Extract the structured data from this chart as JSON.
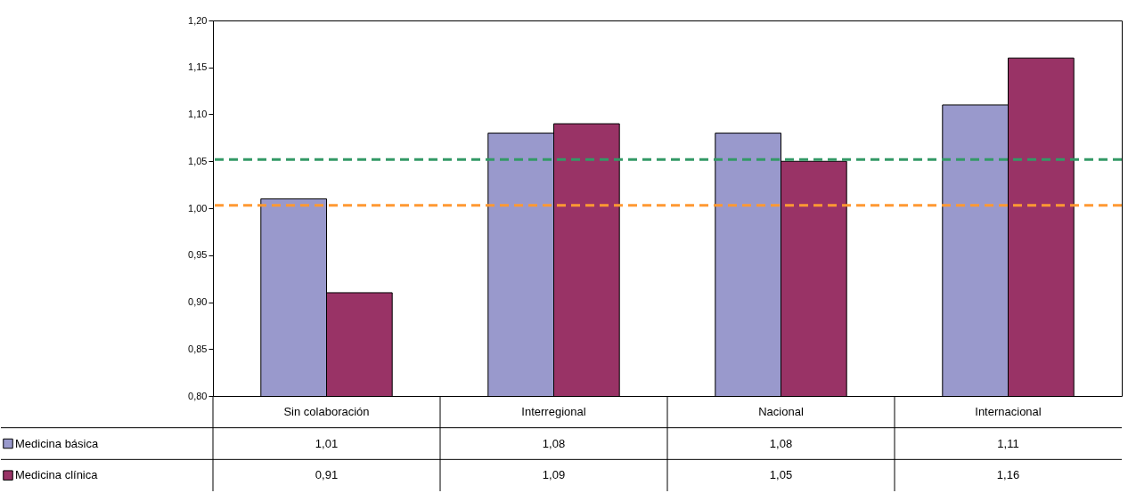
{
  "chart_data": {
    "type": "bar",
    "categories": [
      "Sin colaboración",
      "Interregional",
      "Nacional",
      "Internacional"
    ],
    "series": [
      {
        "name": "Medicina básica",
        "color": "#9999cc",
        "values": [
          1.01,
          1.08,
          1.08,
          1.11
        ],
        "value_labels": [
          "1,01",
          "1,08",
          "1,08",
          "1,11"
        ]
      },
      {
        "name": "Medicina clínica",
        "color": "#993366",
        "values": [
          0.91,
          1.09,
          1.05,
          1.16
        ],
        "value_labels": [
          "0,91",
          "1,09",
          "1,05",
          "1,16"
        ]
      }
    ],
    "ylim": [
      0.8,
      1.2
    ],
    "yticks": [
      {
        "value": 0.8,
        "label": "0,80"
      },
      {
        "value": 0.85,
        "label": "0,85"
      },
      {
        "value": 0.9,
        "label": "0,90"
      },
      {
        "value": 0.95,
        "label": "0,95"
      },
      {
        "value": 1.0,
        "label": "1,00"
      },
      {
        "value": 1.05,
        "label": "1,05"
      },
      {
        "value": 1.1,
        "label": "1,10"
      },
      {
        "value": 1.15,
        "label": "1,15"
      },
      {
        "value": 1.2,
        "label": "1,20"
      }
    ],
    "ref_lines": [
      {
        "axis": "y",
        "value": 1.052,
        "color": "#339966",
        "line_style": "dashed"
      },
      {
        "axis": "y",
        "value": 1.003,
        "color": "#ff9933",
        "line_style": "dashed"
      }
    ],
    "grid": false,
    "legend": "bottom left"
  }
}
